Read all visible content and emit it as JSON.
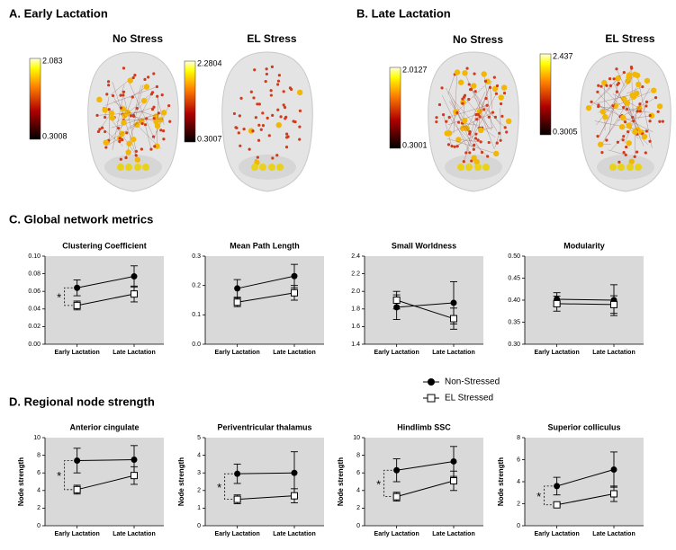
{
  "headings": {
    "a": "A. Early Lactation",
    "b": "B. Late Lactation",
    "c": "C. Global network metrics",
    "d": "D. Regional node strength"
  },
  "plot_color": "#d9d9d9",
  "brains": [
    {
      "title": "No Stress",
      "max": 2.083,
      "min": 0.3008
    },
    {
      "title": "EL Stress",
      "max": 2.2804,
      "min": 0.3007
    },
    {
      "title": "No Stress",
      "max": 2.0127,
      "min": 0.3001
    },
    {
      "title": "EL Stress",
      "max": 2.437,
      "min": 0.3005
    }
  ],
  "chart_data": [
    {
      "type": "line",
      "title": "Clustering Coefficient",
      "categories": [
        "Early Lactation",
        "Late Lactation"
      ],
      "ylim": [
        0,
        0.1
      ],
      "yticks": [
        {
          "value": 0,
          "label": "0.00"
        },
        {
          "value": 0.02,
          "label": "0.02"
        },
        {
          "value": 0.04,
          "label": "0.04"
        },
        {
          "value": 0.06,
          "label": "0.06"
        },
        {
          "value": 0.08,
          "label": "0.08"
        },
        {
          "value": 0.1,
          "label": "0.10"
        }
      ],
      "annotation": "*",
      "series": [
        {
          "name": "Non-Stressed",
          "color": "#000000",
          "marker": "circle",
          "values": [
            0.064,
            0.077
          ],
          "errors": [
            0.009,
            0.012
          ]
        },
        {
          "name": "EL Stressed",
          "color": "#000000",
          "marker": "square-open",
          "values": [
            0.044,
            0.057
          ],
          "errors": [
            0.005,
            0.009
          ]
        }
      ]
    },
    {
      "type": "line",
      "title": "Mean Path Length",
      "categories": [
        "Early Lactation",
        "Late Lactation"
      ],
      "ylim": [
        0,
        0.3
      ],
      "yticks": [
        {
          "value": 0,
          "label": "0.0"
        },
        0.1,
        0.2,
        0.3
      ],
      "series": [
        {
          "name": "Non-Stressed",
          "color": "#000000",
          "marker": "circle",
          "values": [
            0.19,
            0.232
          ],
          "errors": [
            0.03,
            0.04
          ]
        },
        {
          "name": "EL Stressed",
          "color": "#000000",
          "marker": "square-open",
          "values": [
            0.143,
            0.175
          ],
          "errors": [
            0.015,
            0.025
          ]
        }
      ]
    },
    {
      "type": "line",
      "title": "Small Worldness",
      "categories": [
        "Early Lactation",
        "Late Lactation"
      ],
      "ylim": [
        1.4,
        2.4
      ],
      "yticks": [
        1.4,
        1.6,
        1.8,
        {
          "value": 2,
          "label": "2.0"
        },
        2.2,
        2.4
      ],
      "series": [
        {
          "name": "Non-Stressed",
          "color": "#000000",
          "marker": "circle",
          "values": [
            1.82,
            1.87
          ],
          "errors": [
            0.14,
            0.24
          ]
        },
        {
          "name": "EL Stressed",
          "color": "#000000",
          "marker": "square-open",
          "values": [
            1.9,
            1.69
          ],
          "errors": [
            0.1,
            0.12
          ]
        }
      ]
    },
    {
      "type": "line",
      "title": "Modularity",
      "categories": [
        "Early Lactation",
        "Late Lactation"
      ],
      "ylim": [
        0.3,
        0.5
      ],
      "yticks": [
        {
          "value": 0.3,
          "label": "0.30"
        },
        0.35,
        {
          "value": 0.4,
          "label": "0.40"
        },
        0.45,
        {
          "value": 0.5,
          "label": "0.50"
        }
      ],
      "series": [
        {
          "name": "Non-Stressed",
          "color": "#000000",
          "marker": "circle",
          "values": [
            0.402,
            0.4
          ],
          "errors": [
            0.015,
            0.035
          ]
        },
        {
          "name": "EL Stressed",
          "color": "#000000",
          "marker": "square-open",
          "values": [
            0.392,
            0.39
          ],
          "errors": [
            0.017,
            0.02
          ]
        }
      ]
    },
    {
      "type": "line",
      "title": "Anterior cingulate",
      "ylabel": "Node strength",
      "categories": [
        "Early Lactation",
        "Late Lactation"
      ],
      "ylim": [
        0,
        10
      ],
      "yticks": [
        0,
        2,
        4,
        6,
        8,
        10
      ],
      "annotation": "*",
      "series": [
        {
          "name": "Non-Stressed",
          "color": "#000000",
          "marker": "circle",
          "values": [
            7.4,
            7.5
          ],
          "errors": [
            1.4,
            1.6
          ]
        },
        {
          "name": "EL Stressed",
          "color": "#000000",
          "marker": "square-open",
          "values": [
            4.1,
            5.7
          ],
          "errors": [
            0.5,
            1.0
          ]
        }
      ]
    },
    {
      "type": "line",
      "title": "Periventricular thalamus",
      "ylabel": "Node strength",
      "categories": [
        "Early Lactation",
        "Late Lactation"
      ],
      "ylim": [
        0,
        5
      ],
      "yticks": [
        0,
        1,
        2,
        3,
        4,
        5
      ],
      "annotation": "*",
      "series": [
        {
          "name": "Non-Stressed",
          "color": "#000000",
          "marker": "circle",
          "values": [
            2.95,
            3.0
          ],
          "errors": [
            0.55,
            1.2
          ]
        },
        {
          "name": "EL Stressed",
          "color": "#000000",
          "marker": "square-open",
          "values": [
            1.5,
            1.7
          ],
          "errors": [
            0.25,
            0.4
          ]
        }
      ]
    },
    {
      "type": "line",
      "title": "Hindlimb SSC",
      "ylabel": "Node strength",
      "categories": [
        "Early Lactation",
        "Late Lactation"
      ],
      "ylim": [
        0,
        10
      ],
      "yticks": [
        0,
        2,
        4,
        6,
        8,
        10
      ],
      "annotation": "*",
      "series": [
        {
          "name": "Non-Stressed",
          "color": "#000000",
          "marker": "circle",
          "values": [
            6.3,
            7.3
          ],
          "errors": [
            1.3,
            1.7
          ]
        },
        {
          "name": "EL Stressed",
          "color": "#000000",
          "marker": "square-open",
          "values": [
            3.3,
            5.1
          ],
          "errors": [
            0.5,
            1.1
          ]
        }
      ]
    },
    {
      "type": "line",
      "title": "Superior colliculus",
      "ylabel": "Node strength",
      "categories": [
        "Early Lactation",
        "Late Lactation"
      ],
      "ylim": [
        0,
        8
      ],
      "yticks": [
        0,
        2,
        4,
        6,
        8
      ],
      "annotation": "*",
      "series": [
        {
          "name": "Non-Stressed",
          "color": "#000000",
          "marker": "circle",
          "values": [
            3.6,
            5.1
          ],
          "errors": [
            0.8,
            1.6
          ]
        },
        {
          "name": "EL Stressed",
          "color": "#000000",
          "marker": "square-open",
          "values": [
            1.9,
            2.9
          ],
          "errors": [
            0.15,
            0.7
          ]
        }
      ]
    }
  ]
}
